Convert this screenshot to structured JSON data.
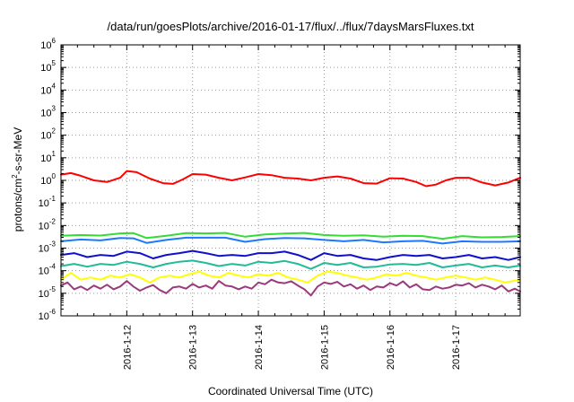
{
  "chart_data": {
    "type": "line",
    "title": "/data/run/goesPlots/archive/2016-01-17/flux/../flux/7daysMarsFluxes.txt",
    "xlabel": "Coordinated Universal Time (UTC)",
    "ylabel": {
      "pre": "protons/cm",
      "sup": "2",
      "post": "-s-sr-MeV"
    },
    "y_scale": "log",
    "ylim_exp": [
      -6,
      6
    ],
    "y_ticks": [
      {
        "base": "10",
        "exp": "-6"
      },
      {
        "base": "10",
        "exp": "-5"
      },
      {
        "base": "10",
        "exp": "-4"
      },
      {
        "base": "10",
        "exp": "-3"
      },
      {
        "base": "10",
        "exp": "-2"
      },
      {
        "base": "10",
        "exp": "-1"
      },
      {
        "base": "10",
        "exp": "0"
      },
      {
        "base": "10",
        "exp": "1"
      },
      {
        "base": "10",
        "exp": "2"
      },
      {
        "base": "10",
        "exp": "3"
      },
      {
        "base": "10",
        "exp": "4"
      },
      {
        "base": "10",
        "exp": "5"
      },
      {
        "base": "10",
        "exp": "6"
      }
    ],
    "x_range_days": [
      "2016-01-11",
      "2016-01-18"
    ],
    "xlim": [
      11.0,
      17.98
    ],
    "x_ticks": [
      {
        "label": "2016-1-12",
        "day": 12
      },
      {
        "label": "2016-1-13",
        "day": 13
      },
      {
        "label": "2016-1-14",
        "day": 14
      },
      {
        "label": "2016-1-15",
        "day": 15
      },
      {
        "label": "2016-1-16",
        "day": 16
      },
      {
        "label": "2016-1-17",
        "day": 17
      }
    ],
    "grid": true,
    "series": [
      {
        "color": "#ff0000",
        "x": [
          11.0,
          11.15,
          11.3,
          11.5,
          11.7,
          11.9,
          12.0,
          12.15,
          12.35,
          12.55,
          12.7,
          12.85,
          13.0,
          13.2,
          13.4,
          13.6,
          13.8,
          14.0,
          14.2,
          14.4,
          14.6,
          14.8,
          15.0,
          15.2,
          15.4,
          15.6,
          15.8,
          16.0,
          16.2,
          16.4,
          16.55,
          16.7,
          16.85,
          17.0,
          17.2,
          17.4,
          17.6,
          17.8,
          17.98
        ],
        "y": [
          1.8,
          2.1,
          1.6,
          1.0,
          0.85,
          1.3,
          2.6,
          2.3,
          1.2,
          0.75,
          0.7,
          1.1,
          1.9,
          1.8,
          1.3,
          1.0,
          1.35,
          1.9,
          1.7,
          1.3,
          1.2,
          1.0,
          1.3,
          1.5,
          1.2,
          0.75,
          0.72,
          1.25,
          1.2,
          0.85,
          0.55,
          0.65,
          1.0,
          1.3,
          1.3,
          0.8,
          0.6,
          0.8,
          1.3
        ]
      },
      {
        "color": "#33dd33",
        "x": [
          11.0,
          11.3,
          11.6,
          11.9,
          12.1,
          12.3,
          12.6,
          12.9,
          13.2,
          13.5,
          13.8,
          14.1,
          14.4,
          14.7,
          15.0,
          15.3,
          15.6,
          15.9,
          16.2,
          16.5,
          16.8,
          17.1,
          17.4,
          17.7,
          17.98
        ],
        "y": [
          0.0035,
          0.0038,
          0.0036,
          0.0045,
          0.0046,
          0.0028,
          0.0035,
          0.0046,
          0.0045,
          0.0047,
          0.0032,
          0.004,
          0.0044,
          0.0047,
          0.0038,
          0.0035,
          0.0037,
          0.0032,
          0.0035,
          0.0034,
          0.0026,
          0.0034,
          0.003,
          0.0031,
          0.0034
        ]
      },
      {
        "color": "#1e78ff",
        "x": [
          11.0,
          11.3,
          11.6,
          11.9,
          12.1,
          12.3,
          12.6,
          12.9,
          13.2,
          13.5,
          13.8,
          14.1,
          14.4,
          14.7,
          15.0,
          15.3,
          15.6,
          15.9,
          16.2,
          16.5,
          16.8,
          17.1,
          17.4,
          17.7,
          17.98
        ],
        "y": [
          0.002,
          0.0024,
          0.0022,
          0.0028,
          0.0027,
          0.0017,
          0.0023,
          0.0029,
          0.0029,
          0.0029,
          0.0019,
          0.0025,
          0.0028,
          0.0027,
          0.0023,
          0.002,
          0.0023,
          0.0018,
          0.002,
          0.0021,
          0.0016,
          0.002,
          0.0019,
          0.0019,
          0.002
        ]
      },
      {
        "color": "#1010cc",
        "x": [
          11.0,
          11.2,
          11.4,
          11.6,
          11.8,
          12.0,
          12.2,
          12.4,
          12.6,
          12.8,
          13.0,
          13.2,
          13.4,
          13.6,
          13.8,
          14.0,
          14.2,
          14.4,
          14.6,
          14.8,
          15.0,
          15.2,
          15.4,
          15.6,
          15.8,
          16.0,
          16.2,
          16.4,
          16.6,
          16.8,
          17.0,
          17.2,
          17.4,
          17.6,
          17.8,
          17.98
        ],
        "y": [
          0.0005,
          0.0006,
          0.0004,
          0.0005,
          0.00045,
          0.0007,
          0.0006,
          0.00035,
          0.0005,
          0.0006,
          0.00075,
          0.0006,
          0.00045,
          0.0005,
          0.00045,
          0.0006,
          0.0006,
          0.0007,
          0.0005,
          0.0003,
          0.0006,
          0.00045,
          0.0005,
          0.00035,
          0.0003,
          0.0004,
          0.0005,
          0.00045,
          0.0005,
          0.00035,
          0.0004,
          0.0005,
          0.00035,
          0.0004,
          0.0003,
          0.0004
        ]
      },
      {
        "color": "#22bb99",
        "x": [
          11.0,
          11.2,
          11.4,
          11.6,
          11.8,
          12.0,
          12.2,
          12.4,
          12.6,
          12.8,
          13.0,
          13.2,
          13.4,
          13.6,
          13.8,
          14.0,
          14.2,
          14.4,
          14.6,
          14.8,
          15.0,
          15.2,
          15.4,
          15.6,
          15.8,
          16.0,
          16.2,
          16.4,
          16.6,
          16.8,
          17.0,
          17.2,
          17.4,
          17.6,
          17.8,
          17.98
        ],
        "y": [
          0.00016,
          0.0002,
          0.00015,
          0.0002,
          0.00018,
          0.00025,
          0.0002,
          0.00014,
          0.0002,
          0.00025,
          0.00028,
          0.00022,
          0.00016,
          0.0002,
          0.00017,
          0.00025,
          0.00022,
          0.00027,
          0.0002,
          0.00012,
          0.00022,
          0.00018,
          0.00022,
          0.00014,
          0.00015,
          0.00019,
          0.0002,
          0.00018,
          0.00022,
          0.00014,
          0.00017,
          0.0002,
          0.00014,
          0.00017,
          0.00014,
          0.00017
        ]
      },
      {
        "color": "#ffff00",
        "x": [
          11.0,
          11.15,
          11.3,
          11.45,
          11.6,
          11.75,
          11.9,
          12.05,
          12.2,
          12.35,
          12.5,
          12.65,
          12.8,
          12.95,
          13.1,
          13.25,
          13.4,
          13.55,
          13.7,
          13.85,
          14.0,
          14.15,
          14.3,
          14.45,
          14.6,
          14.75,
          14.9,
          15.05,
          15.2,
          15.35,
          15.5,
          15.65,
          15.8,
          15.95,
          16.1,
          16.25,
          16.4,
          16.55,
          16.7,
          16.85,
          17.0,
          17.15,
          17.3,
          17.45,
          17.6,
          17.75,
          17.98
        ],
        "y": [
          4e-05,
          8e-05,
          4e-05,
          5e-05,
          4e-05,
          6e-05,
          5e-05,
          7e-05,
          5e-05,
          3e-05,
          5e-05,
          6e-05,
          5e-05,
          7e-05,
          9e-05,
          6e-05,
          5e-05,
          8e-05,
          6e-05,
          5e-05,
          7e-05,
          6e-05,
          8e-05,
          5e-05,
          4e-05,
          3e-05,
          6e-05,
          9e-05,
          8e-05,
          6e-05,
          5e-05,
          4e-05,
          5e-05,
          7e-05,
          6e-05,
          8e-05,
          6e-05,
          5e-05,
          4e-05,
          5e-05,
          6e-05,
          5e-05,
          4e-05,
          5e-05,
          4e-05,
          3e-05,
          4e-05
        ]
      },
      {
        "color": "#9b3a7a",
        "x": [
          11.0,
          11.1,
          11.2,
          11.3,
          11.4,
          11.5,
          11.6,
          11.7,
          11.8,
          11.9,
          12.0,
          12.1,
          12.2,
          12.3,
          12.4,
          12.5,
          12.6,
          12.7,
          12.8,
          12.9,
          13.0,
          13.1,
          13.2,
          13.3,
          13.4,
          13.5,
          13.6,
          13.7,
          13.8,
          13.9,
          14.0,
          14.1,
          14.2,
          14.3,
          14.4,
          14.5,
          14.6,
          14.7,
          14.8,
          14.9,
          15.0,
          15.1,
          15.2,
          15.3,
          15.4,
          15.5,
          15.6,
          15.7,
          15.8,
          15.9,
          16.0,
          16.1,
          16.2,
          16.3,
          16.4,
          16.5,
          16.6,
          16.7,
          16.8,
          16.9,
          17.0,
          17.1,
          17.2,
          17.3,
          17.4,
          17.5,
          17.6,
          17.7,
          17.8,
          17.9,
          17.98
        ],
        "y": [
          2.2e-05,
          3e-05,
          1.5e-05,
          2e-05,
          1.4e-05,
          2.2e-05,
          1.6e-05,
          2.4e-05,
          1.5e-05,
          2e-05,
          3.5e-05,
          2e-05,
          1.3e-05,
          1.8e-05,
          2.3e-05,
          1.4e-05,
          1e-05,
          1.8e-05,
          2e-05,
          1.6e-05,
          2.6e-05,
          1.8e-05,
          2.2e-05,
          1.6e-05,
          3.5e-05,
          2.2e-05,
          2e-05,
          1.5e-05,
          2e-05,
          1.6e-05,
          3e-05,
          2.5e-05,
          4e-05,
          3e-05,
          2.8e-05,
          3.4e-05,
          2.2e-05,
          1.5e-05,
          8e-06,
          2e-05,
          3e-05,
          2.6e-05,
          3.2e-05,
          2e-05,
          2.5e-05,
          1.6e-05,
          2.2e-05,
          1.4e-05,
          2e-05,
          1.8e-05,
          2.8e-05,
          2.2e-05,
          3.4e-05,
          1.8e-05,
          2.5e-05,
          1.5e-05,
          1.4e-05,
          2e-05,
          1.6e-05,
          1.8e-05,
          2.4e-05,
          2.2e-05,
          2.8e-05,
          1.8e-05,
          2.4e-05,
          2e-05,
          1.5e-05,
          2.2e-05,
          1.2e-05,
          1.6e-05,
          1.2e-05
        ]
      }
    ]
  }
}
